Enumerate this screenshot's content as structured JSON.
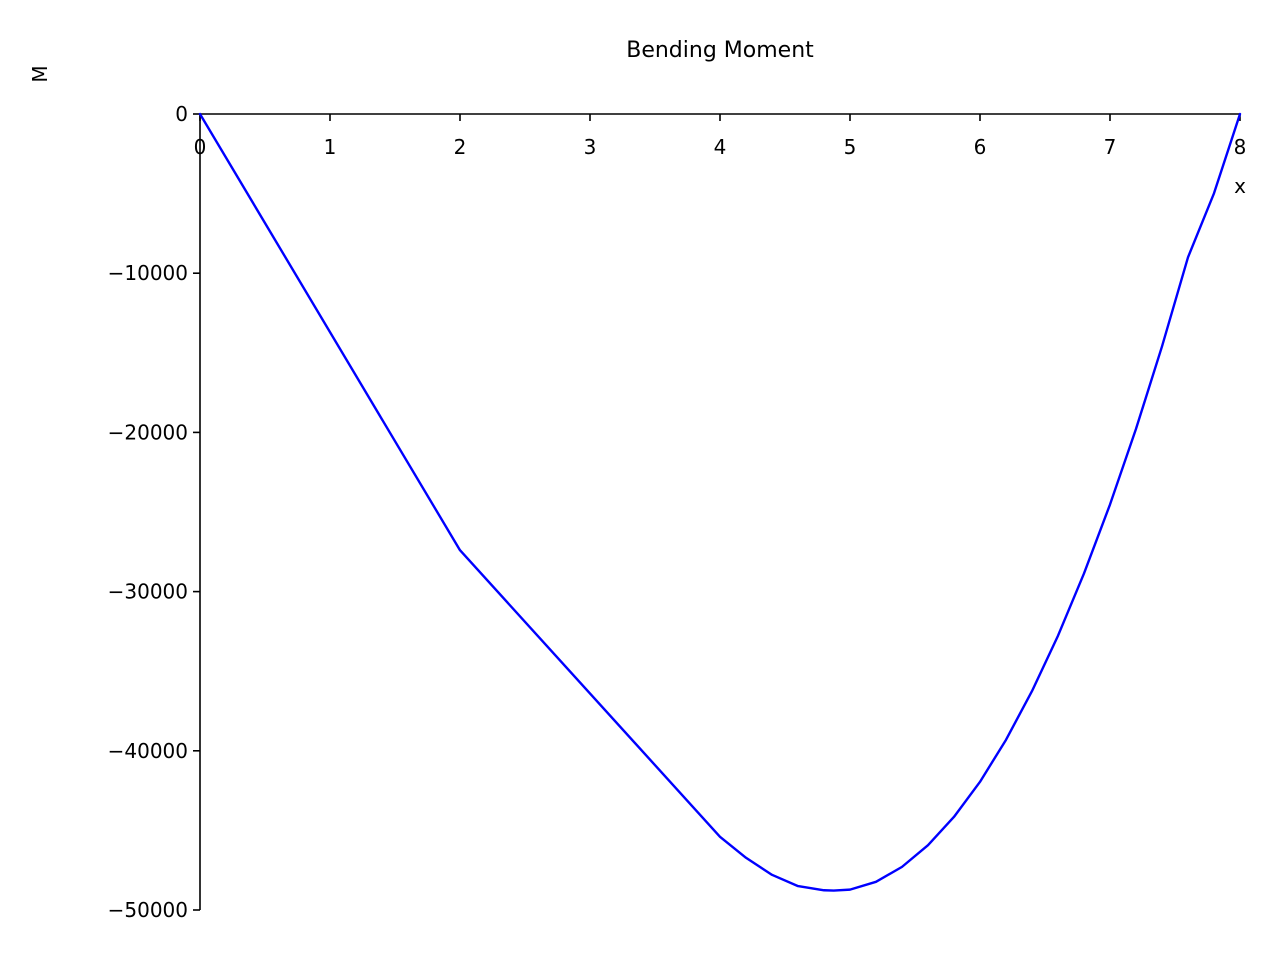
{
  "chart_data": {
    "type": "line",
    "title": "Bending Moment",
    "xlabel": "x",
    "ylabel": "M",
    "xlim": [
      0,
      8
    ],
    "ylim": [
      -50000,
      0
    ],
    "x_ticks": [
      0,
      1,
      2,
      3,
      4,
      5,
      6,
      7,
      8
    ],
    "y_ticks": [
      0,
      -10000,
      -20000,
      -30000,
      -40000,
      -50000
    ],
    "y_tick_labels": [
      "0",
      "−10000",
      "−20000",
      "−30000",
      "−40000",
      "−50000"
    ],
    "grid": false,
    "series": [
      {
        "color": "#0000ff",
        "x": [
          0,
          2,
          4,
          4.2,
          4.4,
          4.6,
          4.8,
          4.875,
          5.0,
          5.2,
          5.4,
          5.6,
          5.8,
          6.0,
          6.2,
          6.4,
          6.6,
          6.8,
          7.0,
          7.2,
          7.4,
          7.6,
          7.8,
          8.0
        ],
        "y": [
          0,
          -27400,
          -45400,
          -46720,
          -47790,
          -48500,
          -48760,
          -48780,
          -48720,
          -48230,
          -47290,
          -45930,
          -44150,
          -41950,
          -39310,
          -36250,
          -32770,
          -28860,
          -24530,
          -19780,
          -14600,
          -9000,
          -4980,
          0
        ]
      }
    ]
  }
}
